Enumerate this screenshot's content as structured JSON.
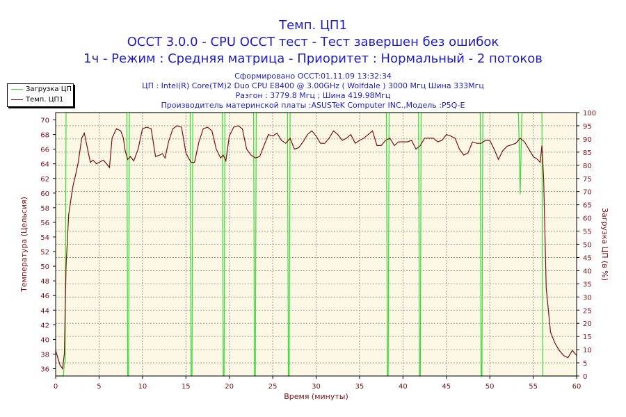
{
  "title_lines": [
    "Темп. ЦП1",
    "OCCT 3.0.0 - CPU OCCT тест - Тест завершен без ошибок",
    "1ч - Режим : Средняя матрица - Приоритет : Нормальный - 2 потоков"
  ],
  "info_lines": [
    "Сформировано OCCT:01.11.09 13:32:34",
    "ЦП : Intel(R) Core(TM)2 Duo CPU E8400 @ 3.00GHz ( Wolfdale ) 3000 Мгц Шина 333Мгц",
    "Разгон : 3779.8 Мгц ; Шина 419.98Мгц",
    "Производитель материнской платы :ASUSTeK Computer INC.,Модель :P5Q-E"
  ],
  "legend": {
    "cpu_load": "Загрузка ЦП",
    "cpu_temp": "Темп. ЦП1"
  },
  "chart_data": {
    "type": "line",
    "title": "Темп. ЦП1",
    "xlabel": "Время (минуты)",
    "ylabel": "Температура (Цельсия)",
    "y2label": "Загрузка ЦП (в %)",
    "xlim": [
      0,
      60
    ],
    "ylim": [
      35,
      71
    ],
    "y2lim": [
      0,
      100
    ],
    "xticks": [
      0,
      5,
      10,
      15,
      20,
      25,
      30,
      35,
      40,
      45,
      50,
      55,
      60
    ],
    "yticks": [
      36,
      38,
      40,
      42,
      44,
      46,
      48,
      50,
      52,
      54,
      56,
      58,
      60,
      62,
      64,
      66,
      68,
      70
    ],
    "y2ticks": [
      0,
      5,
      10,
      15,
      20,
      25,
      30,
      35,
      40,
      45,
      50,
      55,
      60,
      65,
      70,
      75,
      80,
      85,
      90,
      95,
      100
    ],
    "grid": true,
    "legend_position": "top-left",
    "colors": {
      "cpu_load": "#33dd33",
      "cpu_temp": "#7a0e0e",
      "plot_bg": "#fdf7e6",
      "axis_text": "#7a0e0e",
      "title": "#1c1cc8"
    },
    "series": [
      {
        "name": "Темп. ЦП1",
        "axis": "left",
        "x": [
          0,
          0.5,
          0.8,
          1.0,
          1.2,
          1.5,
          1.8,
          2.0,
          2.3,
          2.6,
          3.0,
          3.3,
          3.6,
          4.0,
          4.3,
          4.7,
          5.0,
          5.5,
          6.0,
          6.2,
          6.5,
          7.0,
          7.5,
          7.8,
          8.0,
          8.3,
          8.6,
          9.0,
          9.5,
          10.0,
          10.5,
          11.0,
          11.5,
          12.0,
          12.3,
          12.6,
          13.0,
          13.5,
          14.0,
          14.5,
          15.0,
          15.3,
          15.6,
          16.0,
          16.5,
          17.0,
          17.5,
          18.0,
          18.5,
          19.0,
          19.3,
          19.6,
          20.0,
          20.5,
          21.0,
          21.5,
          22.0,
          22.5,
          23.0,
          23.5,
          24.0,
          24.5,
          25.0,
          25.5,
          26.0,
          26.5,
          27.0,
          27.5,
          28.0,
          28.5,
          29.0,
          29.5,
          30.0,
          30.5,
          31.0,
          31.5,
          32.0,
          32.5,
          33.0,
          33.5,
          34.0,
          34.5,
          35.0,
          35.5,
          36.0,
          36.5,
          37.0,
          37.5,
          38.0,
          38.5,
          39.0,
          39.5,
          40.0,
          40.5,
          41.0,
          41.5,
          42.0,
          42.5,
          43.0,
          43.5,
          44.0,
          44.5,
          45.0,
          45.5,
          46.0,
          46.5,
          47.0,
          47.5,
          48.0,
          48.5,
          49.0,
          49.5,
          50.0,
          50.5,
          51.0,
          51.5,
          52.0,
          52.5,
          53.0,
          53.5,
          54.0,
          54.5,
          55.0,
          55.5,
          55.8,
          56.0,
          56.2,
          56.5,
          57.0,
          57.5,
          58.0,
          58.5,
          59.0,
          59.5,
          60.0
        ],
        "y": [
          38.5,
          36.5,
          36,
          38,
          50,
          57,
          59.5,
          61,
          62.5,
          64.2,
          67.5,
          68.2,
          66.5,
          64.2,
          64.5,
          64,
          64.2,
          64.5,
          63.8,
          63.5,
          67.5,
          68.8,
          68.5,
          67.5,
          65.8,
          64.6,
          65.0,
          64.4,
          66.0,
          68.8,
          69.0,
          68.8,
          65.0,
          65.2,
          65.4,
          64.8,
          67.0,
          68.8,
          69.2,
          69.0,
          65.5,
          64.8,
          64.2,
          64.2,
          67.0,
          68.8,
          69.0,
          68.5,
          66.0,
          64.8,
          65.2,
          64.4,
          67.8,
          69.0,
          69.2,
          68.8,
          66.0,
          65.2,
          64.8,
          65.0,
          66.5,
          68.0,
          67.8,
          68.2,
          67.2,
          66.8,
          67.5,
          66.0,
          66.2,
          67.0,
          68.0,
          68.5,
          67.8,
          66.8,
          66.8,
          67.5,
          68.5,
          68.0,
          67.2,
          67.5,
          68.0,
          66.8,
          67.2,
          67.5,
          68.0,
          68.5,
          66.5,
          66.5,
          67.2,
          67.5,
          66.5,
          67.0,
          67.0,
          67.0,
          67.2,
          66.0,
          66.5,
          67.5,
          67.5,
          67.5,
          67.0,
          67.2,
          68.0,
          67.8,
          67.5,
          66.0,
          65.2,
          65.5,
          67.0,
          66.8,
          66.8,
          67.2,
          67.2,
          66.0,
          64.6,
          65.8,
          66.4,
          66.6,
          66.8,
          67.5,
          67.0,
          66.0,
          65.0,
          64.6,
          64.2,
          66.5,
          62,
          47,
          41,
          39.5,
          38.5,
          37.8,
          37.5,
          38.5,
          37.8
        ]
      },
      {
        "name": "Загрузка ЦП",
        "axis": "right",
        "x": [
          0,
          0.9,
          1.0,
          1.1,
          1.2,
          3.0,
          8.2,
          8.3,
          8.4,
          8.5,
          15.5,
          15.6,
          15.7,
          15.8,
          19.2,
          19.3,
          19.4,
          19.5,
          22.8,
          22.9,
          23.0,
          23.1,
          26.7,
          26.8,
          26.9,
          27.0,
          38.1,
          38.2,
          38.3,
          38.4,
          41.8,
          41.9,
          42.0,
          42.1,
          48.9,
          49.0,
          49.1,
          49.2,
          53.3,
          53.5,
          53.7,
          54.5,
          55.5,
          56.0,
          56.1,
          56.2,
          56.3,
          60.0
        ],
        "y": [
          0,
          0,
          5,
          5,
          100,
          100,
          100,
          0,
          0,
          100,
          100,
          0,
          0,
          100,
          100,
          0,
          0,
          100,
          100,
          0,
          0,
          100,
          100,
          0,
          0,
          100,
          100,
          0,
          0,
          100,
          100,
          0,
          0,
          100,
          100,
          0,
          0,
          100,
          100,
          69,
          100,
          100,
          100,
          100,
          0,
          0,
          0,
          0
        ]
      }
    ]
  }
}
